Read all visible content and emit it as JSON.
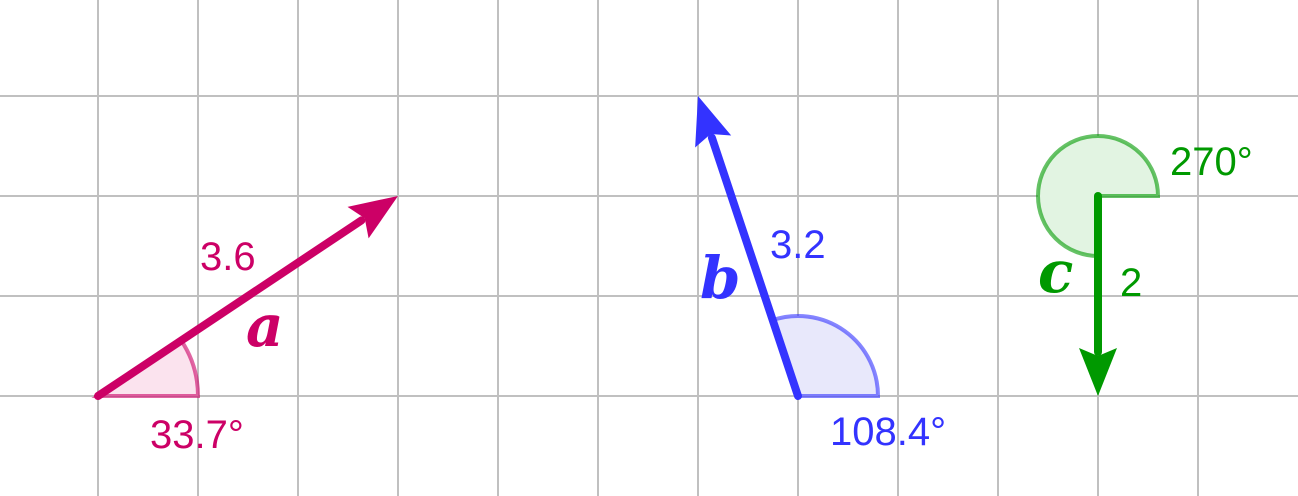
{
  "grid": {
    "color": "#c0c0c0"
  },
  "vectors": [
    {
      "id": "a",
      "name": "a",
      "color": "#cc0066",
      "fill": "#fbe3ee",
      "tail": [
        1,
        1
      ],
      "head": [
        4,
        3
      ],
      "magnitude": "3.6",
      "angle": "33.7°",
      "angle_deg": 33.69
    },
    {
      "id": "b",
      "name": "b",
      "color": "#3333ff",
      "fill": "#e8e8fb",
      "tail": [
        8,
        1
      ],
      "head": [
        7,
        4
      ],
      "magnitude": "3.2",
      "angle": "108.4°",
      "angle_deg": 108.43
    },
    {
      "id": "c",
      "name": "c",
      "color": "#009900",
      "fill": "#e2f4e2",
      "tail": [
        11,
        3
      ],
      "head": [
        11,
        1
      ],
      "magnitude": "2",
      "angle": "270°",
      "angle_deg": 270
    }
  ]
}
